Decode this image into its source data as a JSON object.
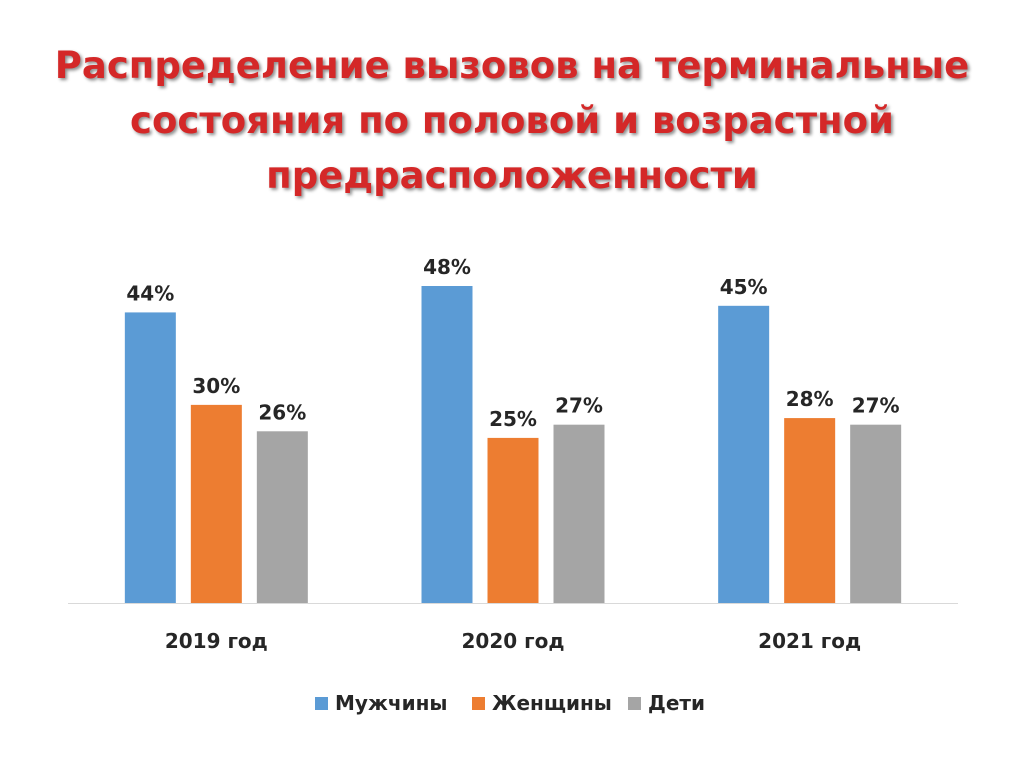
{
  "page": {
    "title_lines": [
      "Распределение вызовов на терминальные",
      "состояния по половой и возрастной",
      "предрасположенности"
    ],
    "title_color": "#d42828"
  },
  "chart_data": {
    "type": "bar",
    "categories": [
      "2019 год",
      "2020 год",
      "2021 год"
    ],
    "series": [
      {
        "name": "Мужчины",
        "color": "#5b9bd5",
        "values": [
          44,
          48,
          45
        ],
        "labels": [
          "44%",
          "48%",
          "45%"
        ]
      },
      {
        "name": "Женщины",
        "color": "#ed7d31",
        "values": [
          30,
          25,
          28
        ],
        "labels": [
          "30%",
          "25%",
          "28%"
        ]
      },
      {
        "name": "Дети",
        "color": "#a5a5a5",
        "values": [
          26,
          27,
          27
        ],
        "labels": [
          "26%",
          "27%",
          "27%"
        ]
      }
    ],
    "ylim": [
      0,
      48
    ],
    "grid": false,
    "legend": "bottom",
    "xlabel": "",
    "ylabel": ""
  }
}
